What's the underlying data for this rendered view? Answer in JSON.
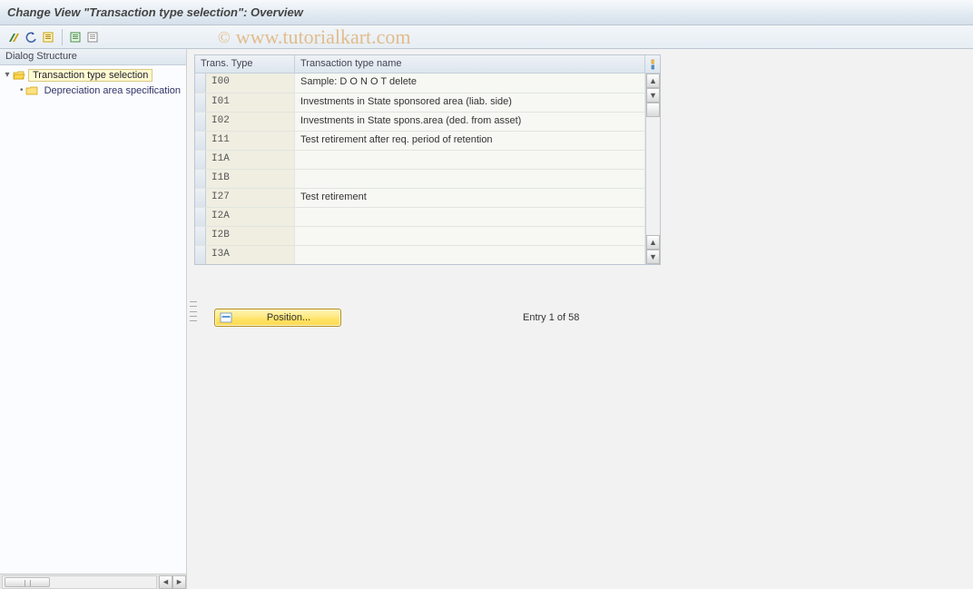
{
  "title": "Change View \"Transaction type selection\": Overview",
  "watermark": "www.tutorialkart.com",
  "sidebar": {
    "header": "Dialog Structure",
    "items": [
      {
        "label": "Transaction type selection",
        "expanded": true,
        "selected": true
      },
      {
        "label": "Depreciation area specification",
        "expanded": false,
        "selected": false
      }
    ]
  },
  "grid": {
    "col1": "Trans. Type",
    "col2": "Transaction type name",
    "rows": [
      {
        "code": "I00",
        "name": "Sample:  D O  N O T delete"
      },
      {
        "code": "I01",
        "name": "Investments in State sponsored area (liab. side)"
      },
      {
        "code": "I02",
        "name": "Investments in State spons.area (ded. from asset)"
      },
      {
        "code": "I11",
        "name": "Test retirement after req. period of retention"
      },
      {
        "code": "I1A",
        "name": ""
      },
      {
        "code": "I1B",
        "name": ""
      },
      {
        "code": "I27",
        "name": "Test retirement"
      },
      {
        "code": "I2A",
        "name": ""
      },
      {
        "code": "I2B",
        "name": ""
      },
      {
        "code": "I3A",
        "name": ""
      }
    ]
  },
  "position_label": "Position...",
  "entry_text": "Entry 1 of 58",
  "colors": {
    "header_grad_top": "#f7f9fb",
    "header_grad_bot": "#d4e0eb",
    "toolbar_top": "#f3f6f9",
    "toolbar_bot": "#e6edf4",
    "border": "#bcc7d2",
    "panel_bg": "#f2f2f2",
    "tree_bg": "#fafcff",
    "tree_text": "#336699",
    "tree_sel_bg": "#fffad0",
    "tree_sel_border": "#d8c980",
    "grid_head_top": "#eef2f6",
    "grid_head_bot": "#dde6ee",
    "grid_cell_bg": "#f7f8f3",
    "grid_code_bg": "#efeee1",
    "grid_border": "#e1e4e0",
    "pos_btn_top": "#fff5b5",
    "pos_btn_bot": "#ffd94d",
    "pos_btn_border": "#b58e1c"
  }
}
